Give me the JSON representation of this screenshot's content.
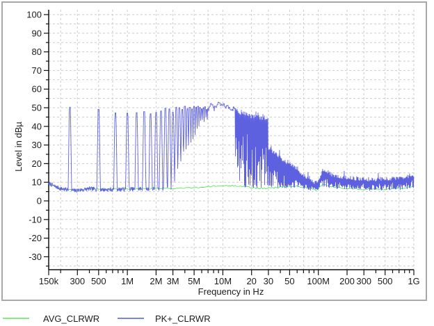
{
  "chart": {
    "y_axis": {
      "title": "Level in dBµ",
      "tick_labels": [
        "100",
        "90",
        "80",
        "70",
        "60",
        "50",
        "40",
        "30",
        "20",
        "10",
        "0",
        "-10",
        "-20",
        "-30"
      ]
    },
    "x_axis": {
      "title": "Frequency in Hz",
      "tick_labels": [
        {
          "hz": 150000,
          "text": "150k"
        },
        {
          "hz": 300000,
          "text": "300"
        },
        {
          "hz": 500000,
          "text": "500"
        },
        {
          "hz": 1000000,
          "text": "1M"
        },
        {
          "hz": 2000000,
          "text": "2M"
        },
        {
          "hz": 3000000,
          "text": "3M"
        },
        {
          "hz": 5000000,
          "text": "5M"
        },
        {
          "hz": 10000000,
          "text": "10M"
        },
        {
          "hz": 20000000,
          "text": "20"
        },
        {
          "hz": 30000000,
          "text": "30"
        },
        {
          "hz": 50000000,
          "text": "50"
        },
        {
          "hz": 100000000,
          "text": "100M"
        },
        {
          "hz": 200000000,
          "text": "200"
        },
        {
          "hz": 300000000,
          "text": "300"
        },
        {
          "hz": 500000000,
          "text": "500"
        },
        {
          "hz": 1000000000,
          "text": "1G"
        }
      ]
    },
    "legend": {
      "items": [
        {
          "label": "AVG_CLRWR",
          "color": "#57e857"
        },
        {
          "label": "PK+_CLRWR",
          "color": "#5558dd"
        }
      ]
    },
    "colors": {
      "background": "#ffffff",
      "frame": "#a8a8a8",
      "grid": "#cbcbcb",
      "axis": "#111111",
      "text": "#1c1c1c"
    }
  },
  "chart_data": {
    "type": "line",
    "title": "",
    "xlabel": "Frequency in Hz",
    "ylabel": "Level in dBµ",
    "x_scale": "log",
    "x_range_hz": [
      150000,
      1000000000
    ],
    "ylim": [
      -30,
      100
    ],
    "y_tick_step": 10,
    "grid": "dashed; horizontal every 5 dB, vertical at 1-2-3-5-7 log-decade multiples",
    "legend_position": "below plot, bottom-left",
    "series": [
      {
        "name": "AVG_CLRWR",
        "color": "#57e857",
        "description": "average detector trace, coincident with the noise floor and hidden beneath PK+ trace"
      },
      {
        "name": "PK+_CLRWR",
        "color": "#5558dd",
        "comb_fundamental_hz": 250000,
        "comb_range_hz": [
          250000,
          30000000
        ],
        "comb_peak_envelope_mhz_db": [
          [
            0.25,
            49
          ],
          [
            0.5,
            50.5
          ],
          [
            0.75,
            47
          ],
          [
            1,
            47.5
          ],
          [
            1.5,
            47.5
          ],
          [
            2,
            48
          ],
          [
            3,
            48.5
          ],
          [
            4,
            49.5
          ],
          [
            5,
            50
          ],
          [
            6,
            50.5
          ],
          [
            7,
            50.5
          ],
          [
            8,
            51
          ],
          [
            9,
            51.5
          ],
          [
            10,
            51
          ],
          [
            12,
            50
          ],
          [
            14,
            49
          ],
          [
            16,
            48
          ],
          [
            18,
            47
          ],
          [
            20,
            46.5
          ],
          [
            22,
            46
          ],
          [
            25,
            45.5
          ],
          [
            28,
            45
          ],
          [
            30,
            44.5
          ]
        ],
        "noise_floor_mhz_db": [
          [
            0.15,
            9.5
          ],
          [
            0.17,
            8
          ],
          [
            0.2,
            6.5
          ],
          [
            0.28,
            5.5
          ],
          [
            0.4,
            6.5
          ],
          [
            0.6,
            6
          ],
          [
            1,
            6.3
          ],
          [
            2,
            6.5
          ],
          [
            3,
            6.6
          ],
          [
            5,
            7
          ],
          [
            7,
            7.5
          ],
          [
            10,
            8
          ],
          [
            15,
            8
          ],
          [
            20,
            7
          ],
          [
            30,
            6.5
          ]
        ],
        "band_top_mhz_db": [
          [
            30,
            28.5
          ],
          [
            35,
            26
          ],
          [
            40,
            23.5
          ],
          [
            45,
            21.5
          ],
          [
            50,
            20
          ],
          [
            55,
            18.5
          ],
          [
            60,
            17
          ],
          [
            65,
            15.5
          ],
          [
            70,
            14
          ],
          [
            75,
            13
          ],
          [
            80,
            12
          ],
          [
            85,
            11
          ],
          [
            90,
            10
          ],
          [
            95,
            9.5
          ],
          [
            100,
            11
          ],
          [
            105,
            14
          ],
          [
            110,
            16
          ],
          [
            115,
            16.5
          ],
          [
            120,
            16
          ],
          [
            130,
            15
          ],
          [
            140,
            14
          ],
          [
            150,
            13.5
          ],
          [
            170,
            13
          ],
          [
            200,
            12.5
          ],
          [
            250,
            12
          ],
          [
            300,
            12
          ],
          [
            350,
            11.5
          ],
          [
            400,
            11.5
          ],
          [
            500,
            12
          ],
          [
            600,
            12
          ],
          [
            700,
            12.5
          ],
          [
            800,
            13
          ],
          [
            900,
            13.5
          ],
          [
            1000,
            13.5
          ]
        ],
        "band_bottom_mhz_db": [
          [
            30,
            6.5
          ],
          [
            40,
            7
          ],
          [
            50,
            7.5
          ],
          [
            60,
            7.5
          ],
          [
            70,
            7
          ],
          [
            80,
            6.5
          ],
          [
            90,
            6
          ],
          [
            95,
            5.5
          ],
          [
            100,
            6
          ],
          [
            105,
            7.5
          ],
          [
            110,
            8.5
          ],
          [
            120,
            8
          ],
          [
            130,
            7.5
          ],
          [
            150,
            7
          ],
          [
            200,
            6.5
          ],
          [
            300,
            6
          ],
          [
            400,
            6
          ],
          [
            500,
            6
          ],
          [
            700,
            6.5
          ],
          [
            900,
            7
          ],
          [
            1000,
            7.5
          ]
        ]
      }
    ]
  }
}
